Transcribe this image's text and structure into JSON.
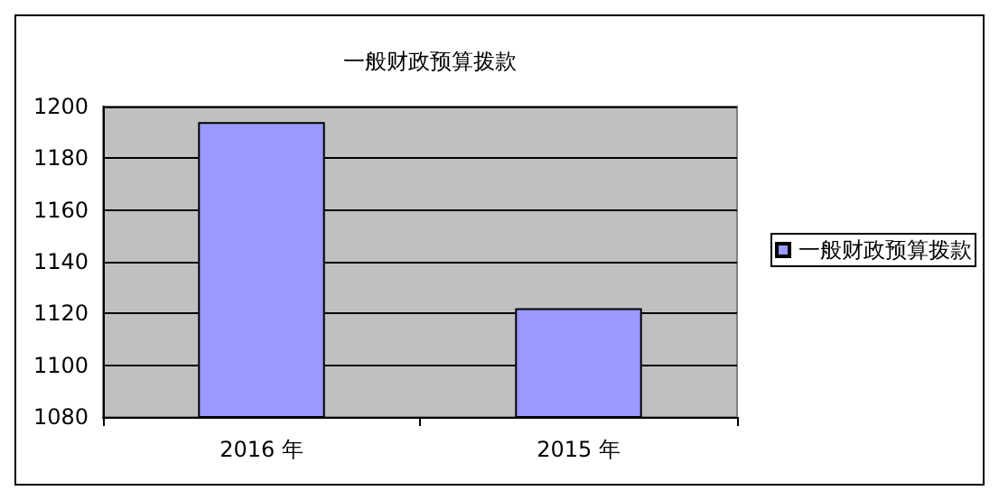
{
  "chart_data": {
    "type": "bar",
    "title": "一般财政预算拨款",
    "categories": [
      "2016 年",
      "2015 年"
    ],
    "series": [
      {
        "name": "一般财政预算拨款",
        "color": "#9999ff",
        "values": [
          1194,
          1122
        ]
      }
    ],
    "ylim": [
      1080,
      1200
    ],
    "yticks": [
      1080,
      1100,
      1120,
      1140,
      1160,
      1180,
      1200
    ],
    "grid": "y",
    "legend": "right"
  }
}
